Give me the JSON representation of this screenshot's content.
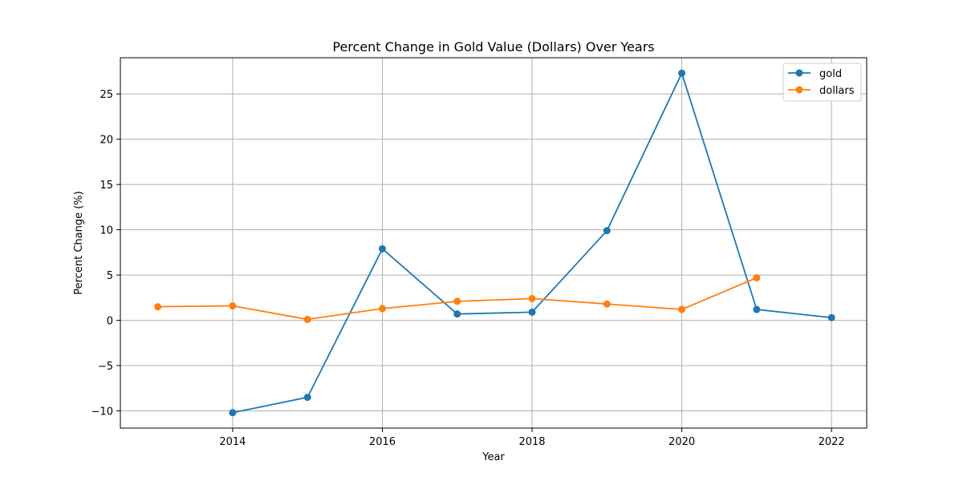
{
  "chart_data": {
    "type": "line",
    "title": "Percent Change in Gold Value (Dollars) Over Years",
    "xlabel": "Year",
    "ylabel": "Percent Change (%)",
    "xlim": [
      2012.5,
      2022.47
    ],
    "ylim": [
      -11.9,
      29.0
    ],
    "xticks": [
      2014,
      2016,
      2018,
      2020,
      2022
    ],
    "yticks": [
      -10,
      -5,
      0,
      5,
      10,
      15,
      20,
      25
    ],
    "ytick_labels": [
      "−10",
      "−5",
      "0",
      "5",
      "10",
      "15",
      "20",
      "25"
    ],
    "grid": true,
    "legend_position": "top-right",
    "series": [
      {
        "name": "gold",
        "color": "#1f77b4",
        "x": [
          2014,
          2015,
          2016,
          2017,
          2018,
          2019,
          2020,
          2021,
          2022
        ],
        "y": [
          -10.2,
          -8.5,
          7.9,
          0.7,
          0.9,
          9.9,
          27.3,
          1.2,
          0.3
        ]
      },
      {
        "name": "dollars",
        "color": "#ff7f0e",
        "x": [
          2013,
          2014,
          2015,
          2016,
          2017,
          2018,
          2019,
          2020,
          2021
        ],
        "y": [
          1.5,
          1.6,
          0.1,
          1.3,
          2.1,
          2.4,
          1.8,
          1.2,
          4.7
        ]
      }
    ]
  }
}
